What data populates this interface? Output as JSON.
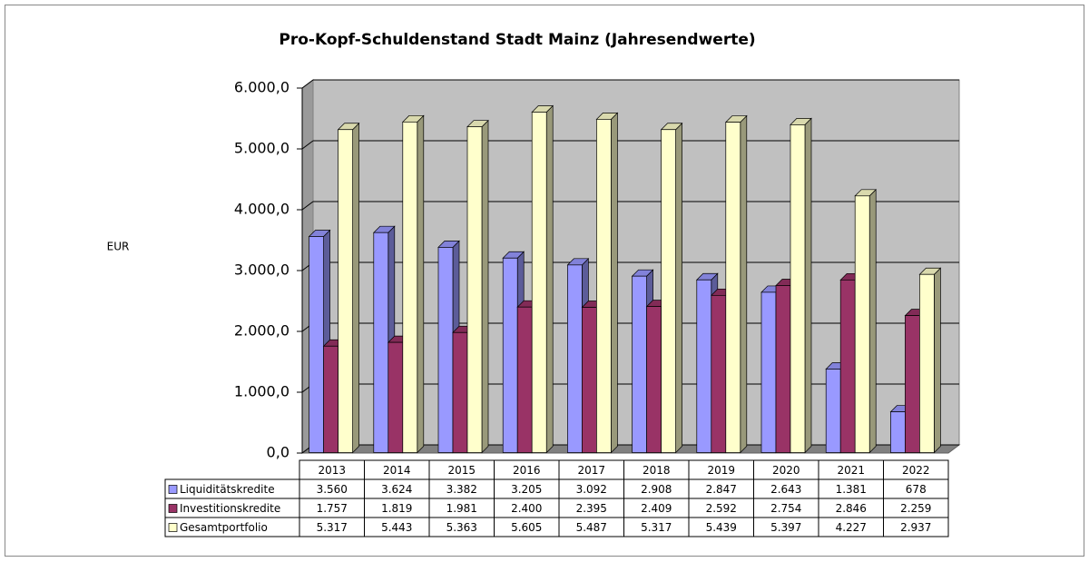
{
  "chart_data": {
    "type": "bar3d",
    "title": "Pro-Kopf-Schuldenstand Stadt Mainz (Jahresendwerte)",
    "y_label": "EUR",
    "categories": [
      "2013",
      "2014",
      "2015",
      "2016",
      "2017",
      "2018",
      "2019",
      "2020",
      "2021",
      "2022"
    ],
    "series": [
      {
        "name": "Liquiditätskredite",
        "color": "#9999ff",
        "values": [
          3560,
          3624,
          3382,
          3205,
          3092,
          2908,
          2847,
          2643,
          1381,
          678
        ],
        "value_labels": [
          "3.560",
          "3.624",
          "3.382",
          "3.205",
          "3.092",
          "2.908",
          "2.847",
          "2.643",
          "1.381",
          "678"
        ]
      },
      {
        "name": "Investitionskredite",
        "color": "#993366",
        "values": [
          1757,
          1819,
          1981,
          2400,
          2395,
          2409,
          2592,
          2754,
          2846,
          2259
        ],
        "value_labels": [
          "1.757",
          "1.819",
          "1.981",
          "2.400",
          "2.395",
          "2.409",
          "2.592",
          "2.754",
          "2.846",
          "2.259"
        ]
      },
      {
        "name": "Gesamtportfolio",
        "color": "#ffffcc",
        "values": [
          5317,
          5443,
          5363,
          5605,
          5487,
          5317,
          5439,
          5397,
          4227,
          2937
        ],
        "value_labels": [
          "5.317",
          "5.443",
          "5.363",
          "5.605",
          "5.487",
          "5.317",
          "5.439",
          "5.397",
          "4.227",
          "2.937"
        ]
      }
    ],
    "ylim": [
      0,
      6000
    ],
    "yticks": [
      {
        "value": 0,
        "label": "0,0"
      },
      {
        "value": 1000,
        "label": "1.000,0"
      },
      {
        "value": 2000,
        "label": "2.000,0"
      },
      {
        "value": 3000,
        "label": "3.000,0"
      },
      {
        "value": 4000,
        "label": "4.000,0"
      },
      {
        "value": 5000,
        "label": "5.000,0"
      },
      {
        "value": 6000,
        "label": "6.000,0"
      }
    ],
    "grid": true,
    "wall_color": "#c0c0c0"
  }
}
